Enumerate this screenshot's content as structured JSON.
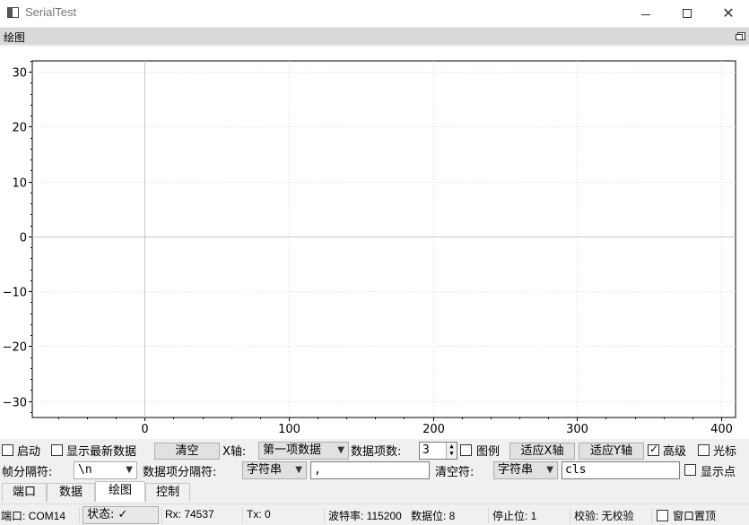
{
  "window": {
    "title": "SerialTest",
    "min_label": "—",
    "close_label": "✕"
  },
  "dock": {
    "title": "绘图"
  },
  "plot": {
    "x_ticks": [
      "0",
      "100",
      "200",
      "300",
      "400"
    ],
    "y_ticks": [
      "30",
      "20",
      "10",
      "0",
      "−10",
      "−20",
      "−30"
    ],
    "x_range": [
      -78,
      410
    ],
    "y_range": [
      -33,
      32
    ]
  },
  "controls": {
    "start_label": "启动",
    "show_latest_label": "显示最新数据",
    "clear_label": "清空",
    "x_axis_label": "X轴:",
    "x_axis_value": "第一项数据",
    "item_count_label": "数据项数:",
    "item_count_value": "3",
    "legend_label": "图例",
    "fit_x_label": "适应X轴",
    "fit_y_label": "适应Y轴",
    "advanced_label": "高级",
    "cursor_label": "光标",
    "frame_sep_label": "帧分隔符:",
    "frame_sep_value": "\\n",
    "item_sep_label": "数据项分隔符:",
    "item_sep_type": "字符串",
    "item_sep_value": ",",
    "clear_char_label": "清空符:",
    "clear_char_type": "字符串",
    "clear_char_value": "cls",
    "show_points_label": "显示点"
  },
  "tabs": [
    "端口",
    "数据",
    "绘图",
    "控制"
  ],
  "status": {
    "port": "端口: COM14",
    "state": "状态: ✓",
    "rx": "Rx: 74537",
    "tx": "Tx: 0",
    "baud": "波特率: 115200",
    "data_bits": "数据位: 8",
    "stop_bits": "停止位: 1",
    "parity": "校验: 无校验",
    "stay_on_top": "窗口置顶"
  }
}
